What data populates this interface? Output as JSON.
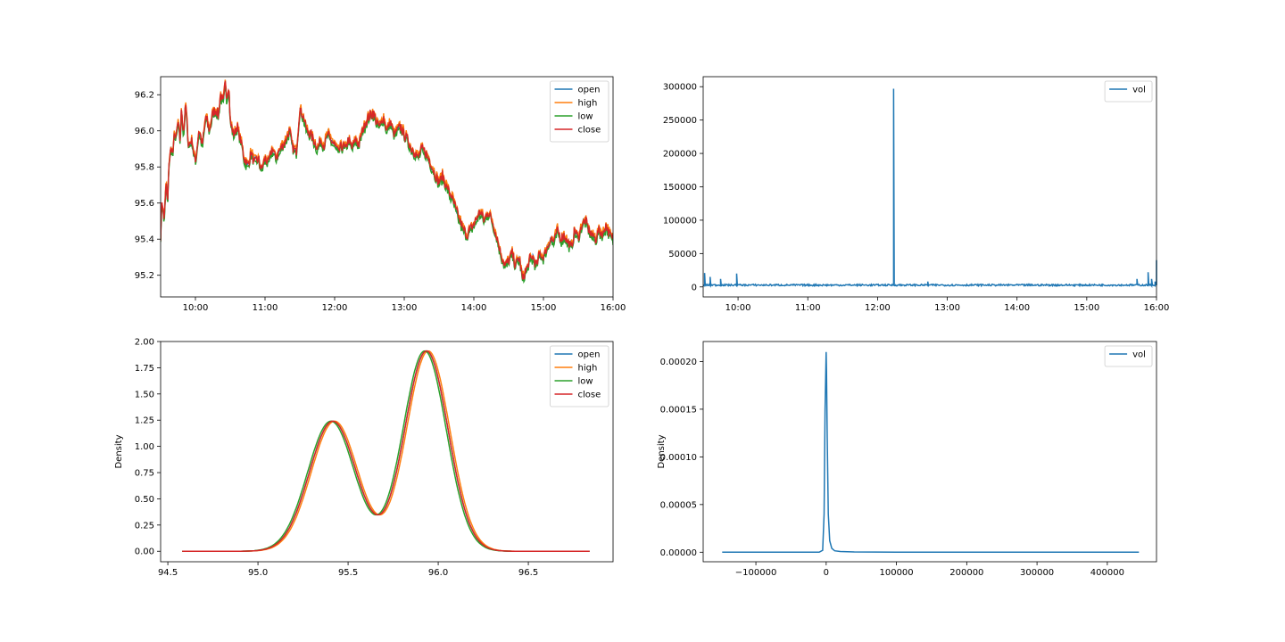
{
  "chart_data": [
    {
      "id": "price_ts",
      "type": "line",
      "xlabel": "",
      "ylabel": "",
      "xlim": [
        9.5,
        16.0
      ],
      "ylim": [
        95.08,
        96.3
      ],
      "x_ticks": [
        10,
        11,
        12,
        13,
        14,
        15,
        16
      ],
      "x_tick_labels": [
        "10:00",
        "11:00",
        "12:00",
        "13:00",
        "14:00",
        "15:00",
        "16:00"
      ],
      "y_ticks": [
        95.2,
        95.4,
        95.6,
        95.8,
        96.0,
        96.2
      ],
      "y_tick_labels": [
        "95.2",
        "95.4",
        "95.6",
        "95.8",
        "96.0",
        "96.2"
      ],
      "legend_position": "top-right",
      "series": [
        {
          "name": "open",
          "color": "#1f77b4"
        },
        {
          "name": "high",
          "color": "#ff7f0e"
        },
        {
          "name": "low",
          "color": "#2ca02c"
        },
        {
          "name": "close",
          "color": "#d62728"
        }
      ],
      "x": [
        9.5,
        9.52,
        9.55,
        9.58,
        9.6,
        9.62,
        9.65,
        9.68,
        9.7,
        9.72,
        9.75,
        9.78,
        9.8,
        9.83,
        9.86,
        9.9,
        9.95,
        10.0,
        10.05,
        10.1,
        10.15,
        10.2,
        10.25,
        10.3,
        10.33,
        10.36,
        10.4,
        10.43,
        10.45,
        10.48,
        10.5,
        10.55,
        10.6,
        10.65,
        10.7,
        10.75,
        10.8,
        10.85,
        10.9,
        10.95,
        11.0,
        11.05,
        11.1,
        11.15,
        11.2,
        11.25,
        11.3,
        11.35,
        11.4,
        11.45,
        11.5,
        11.55,
        11.6,
        11.65,
        11.7,
        11.75,
        11.8,
        11.85,
        11.9,
        11.95,
        12.0,
        12.05,
        12.1,
        12.15,
        12.2,
        12.25,
        12.3,
        12.35,
        12.4,
        12.45,
        12.5,
        12.55,
        12.6,
        12.65,
        12.7,
        12.75,
        12.8,
        12.85,
        12.9,
        12.95,
        13.0,
        13.05,
        13.1,
        13.15,
        13.2,
        13.25,
        13.3,
        13.35,
        13.4,
        13.45,
        13.5,
        13.55,
        13.6,
        13.65,
        13.7,
        13.75,
        13.8,
        13.85,
        13.9,
        13.95,
        14.0,
        14.05,
        14.1,
        14.15,
        14.2,
        14.25,
        14.3,
        14.35,
        14.4,
        14.45,
        14.5,
        14.55,
        14.6,
        14.65,
        14.7,
        14.75,
        14.8,
        14.85,
        14.9,
        14.95,
        15.0,
        15.05,
        15.1,
        15.15,
        15.2,
        15.25,
        15.3,
        15.35,
        15.4,
        15.45,
        15.5,
        15.55,
        15.6,
        15.65,
        15.7,
        15.75,
        15.8,
        15.85,
        15.9,
        15.95,
        16.0
      ],
      "values": [
        95.42,
        95.62,
        95.5,
        95.72,
        95.58,
        95.82,
        95.9,
        95.88,
        96.0,
        95.95,
        96.05,
        95.95,
        96.12,
        95.98,
        96.15,
        95.92,
        95.95,
        95.82,
        96.0,
        95.92,
        96.08,
        96.0,
        96.1,
        96.12,
        96.08,
        96.2,
        96.15,
        96.27,
        96.18,
        96.25,
        96.05,
        95.98,
        96.02,
        95.95,
        95.85,
        95.8,
        95.88,
        95.82,
        95.85,
        95.78,
        95.85,
        95.82,
        95.9,
        95.85,
        95.88,
        95.92,
        95.95,
        96.0,
        95.9,
        95.88,
        96.12,
        96.08,
        96.0,
        95.98,
        95.95,
        95.9,
        95.95,
        95.92,
        95.98,
        95.95,
        95.92,
        95.88,
        95.92,
        95.9,
        95.95,
        95.9,
        95.95,
        95.92,
        96.0,
        96.05,
        96.08,
        96.1,
        96.05,
        96.02,
        96.08,
        96.0,
        96.05,
        95.98,
        96.0,
        96.02,
        95.98,
        95.95,
        95.9,
        95.88,
        95.85,
        95.9,
        95.88,
        95.85,
        95.8,
        95.75,
        95.72,
        95.75,
        95.7,
        95.65,
        95.62,
        95.55,
        95.5,
        95.45,
        95.42,
        95.45,
        95.48,
        95.52,
        95.55,
        95.5,
        95.55,
        95.52,
        95.45,
        95.38,
        95.3,
        95.25,
        95.28,
        95.32,
        95.25,
        95.3,
        95.18,
        95.22,
        95.28,
        95.3,
        95.25,
        95.32,
        95.3,
        95.35,
        95.4,
        95.38,
        95.45,
        95.4,
        95.42,
        95.38,
        95.35,
        95.45,
        95.4,
        95.48,
        95.5,
        95.45,
        95.42,
        95.4,
        95.45,
        95.42,
        95.48,
        95.42,
        95.4
      ]
    },
    {
      "id": "vol_ts",
      "type": "line",
      "xlabel": "",
      "ylabel": "",
      "xlim": [
        9.5,
        16.0
      ],
      "ylim": [
        -15000,
        315000
      ],
      "x_ticks": [
        10,
        11,
        12,
        13,
        14,
        15,
        16
      ],
      "x_tick_labels": [
        "10:00",
        "11:00",
        "12:00",
        "13:00",
        "14:00",
        "15:00",
        "16:00"
      ],
      "y_ticks": [
        0,
        50000,
        100000,
        150000,
        200000,
        250000,
        300000
      ],
      "y_tick_labels": [
        "0",
        "50000",
        "100000",
        "150000",
        "200000",
        "250000",
        "300000"
      ],
      "legend_position": "top-right",
      "series": [
        {
          "name": "vol",
          "color": "#1f77b4"
        }
      ],
      "x": [
        9.5,
        9.52,
        9.54,
        9.56,
        9.58,
        9.6,
        9.62,
        9.64,
        9.7,
        9.75,
        9.8,
        9.85,
        9.9,
        9.95,
        9.98,
        10.0,
        10.02,
        10.05,
        10.1,
        10.2,
        10.3,
        10.4,
        10.5,
        10.6,
        10.7,
        10.8,
        10.9,
        11.0,
        11.1,
        11.2,
        11.3,
        11.4,
        11.5,
        11.6,
        11.7,
        11.8,
        11.9,
        12.0,
        12.1,
        12.2,
        12.23,
        12.25,
        12.27,
        12.3,
        12.4,
        12.5,
        12.6,
        12.7,
        12.72,
        12.75,
        12.8,
        12.9,
        13.0,
        13.1,
        13.2,
        13.3,
        13.4,
        13.5,
        13.6,
        13.7,
        13.8,
        13.9,
        14.0,
        14.1,
        14.2,
        14.3,
        14.4,
        14.5,
        14.6,
        14.7,
        14.8,
        14.9,
        15.0,
        15.1,
        15.2,
        15.3,
        15.4,
        15.5,
        15.6,
        15.7,
        15.72,
        15.75,
        15.8,
        15.85,
        15.88,
        15.9,
        15.93,
        15.95,
        15.98,
        16.0
      ],
      "values": [
        3000,
        21000,
        2000,
        6000,
        1500,
        15000,
        2500,
        3000,
        2000,
        12000,
        2500,
        3000,
        3000,
        2500,
        20000,
        4000,
        6000,
        3000,
        2500,
        4000,
        3000,
        5000,
        2500,
        3500,
        2000,
        3000,
        2500,
        4000,
        3000,
        5500,
        2000,
        3500,
        2500,
        3000,
        2000,
        3000,
        2500,
        3500,
        2500,
        3000,
        297000,
        2500,
        3000,
        2000,
        3000,
        2500,
        3500,
        2000,
        8000,
        2500,
        3000,
        2000,
        2500,
        3500,
        2500,
        3000,
        2500,
        3500,
        3000,
        4000,
        3500,
        6000,
        4000,
        3000,
        4500,
        3000,
        3500,
        2500,
        3000,
        4000,
        3500,
        4000,
        6000,
        4000,
        5000,
        4000,
        4500,
        3500,
        5000,
        4000,
        12000,
        4000,
        5000,
        6000,
        22000,
        6000,
        12000,
        5000,
        8000,
        40000
      ]
    },
    {
      "id": "price_kde",
      "type": "line",
      "xlabel": "",
      "ylabel": "Density",
      "xlim": [
        94.46,
        96.97
      ],
      "ylim": [
        -0.1,
        2.0
      ],
      "x_ticks": [
        94.5,
        95.0,
        95.5,
        96.0,
        96.5
      ],
      "x_tick_labels": [
        "94.5",
        "95.0",
        "95.5",
        "96.0",
        "96.5"
      ],
      "y_ticks": [
        0.0,
        0.25,
        0.5,
        0.75,
        1.0,
        1.25,
        1.5,
        1.75,
        2.0
      ],
      "y_tick_labels": [
        "0.00",
        "0.25",
        "0.50",
        "0.75",
        "1.00",
        "1.25",
        "1.50",
        "1.75",
        "2.00"
      ],
      "legend_position": "top-right",
      "series": [
        {
          "name": "open",
          "color": "#1f77b4",
          "peak1": 95.415,
          "peak2": 95.935
        },
        {
          "name": "high",
          "color": "#ff7f0e",
          "peak1": 95.425,
          "peak2": 95.945
        },
        {
          "name": "low",
          "color": "#2ca02c",
          "peak1": 95.405,
          "peak2": 95.925
        },
        {
          "name": "close",
          "color": "#d62728",
          "peak1": 95.415,
          "peak2": 95.935
        }
      ],
      "x_range": [
        94.58,
        96.84
      ],
      "peak_heights": [
        1.24,
        1.91
      ],
      "trough": {
        "x": 95.65,
        "y": 0.4
      }
    },
    {
      "id": "vol_kde",
      "type": "line",
      "xlabel": "",
      "ylabel": "Density",
      "xlim": [
        -175000,
        470000
      ],
      "ylim": [
        -1e-05,
        0.000221
      ],
      "x_ticks": [
        -100000,
        0,
        100000,
        200000,
        300000,
        400000
      ],
      "x_tick_labels": [
        "−100000",
        "0",
        "100000",
        "200000",
        "300000",
        "400000"
      ],
      "y_ticks": [
        0,
        5e-05,
        0.0001,
        0.00015,
        0.0002
      ],
      "y_tick_labels": [
        "0.00000",
        "0.00005",
        "0.00010",
        "0.00015",
        "0.00020"
      ],
      "legend_position": "top-right",
      "series": [
        {
          "name": "vol",
          "color": "#1f77b4"
        }
      ],
      "x": [
        -148000,
        -50000,
        -10000,
        -5000,
        -3000,
        -1500,
        0,
        500,
        1500,
        3000,
        5000,
        8000,
        12000,
        20000,
        40000,
        100000,
        200000,
        300000,
        445000
      ],
      "values": [
        0,
        0,
        0,
        2e-06,
        4e-05,
        0.00015,
        0.00021,
        0.00019,
        0.00012,
        4e-05,
        1.2e-05,
        4e-06,
        1.5e-06,
        8e-07,
        3e-07,
        1e-07,
        0,
        0,
        0
      ]
    }
  ]
}
